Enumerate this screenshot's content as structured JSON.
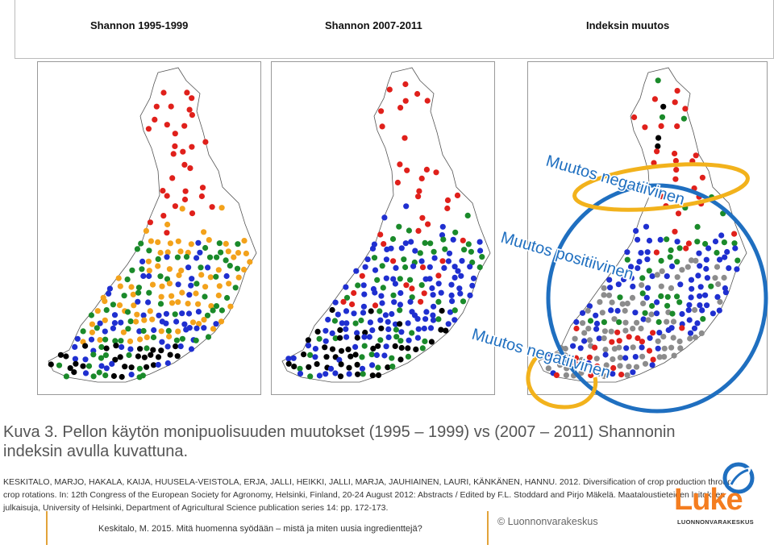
{
  "headers": [
    "Shannon 1995-1999",
    "Shannon 2007-2011",
    "Indeksin muutos"
  ],
  "overlay_labels": {
    "top": "Muutos negatiivinen",
    "middle": "Muutos positiivinen",
    "bottom": "Muutos negatiivinen"
  },
  "caption": "Kuva 3. Pellon käytön monipuolisuuden muutokset (1995 – 1999) vs (2007 – 2011) Shannonin indeksin avulla kuvattuna.",
  "reference": "KESKITALO, MARJO, HAKALA, KAIJA, HUUSELA-VEISTOLA, ERJA, JALLI, HEIKKI, JALLI, MARJA, JAUHIAINEN, LAURI, KÄNKÄNEN, HANNU. 2012.  Diversification of crop production through crop rotations. In: 12th Congress of the European Society for Agronomy, Helsinki, Finland, 20-24 August 2012: Abstracts / Edited by F.L. Stoddard and Pirjo Mäkelä. Maataloustieteiden laitoksen julkaisuja, University of Helsinki, Department of Agricultural Science publication series 14: pp. 172-173.",
  "footer": "Keskitalo, M. 2015. Mitä huomenna syödään – mistä ja miten uusia ingredienttejä?",
  "copyright": "© Luonnonvarakeskus",
  "logo": {
    "word": "Luke",
    "subtitle": "LUONNONVARAKESKUS"
  },
  "colors": {
    "red": "#e0201b",
    "orange": "#f3a21b",
    "green": "#1a8a2a",
    "blue": "#1f2fd0",
    "black": "#000000",
    "grey": "#8c8c8c",
    "accent_blue": "#1f6fc0",
    "accent_yellow": "#f2b21c",
    "logo_orange": "#f47d20"
  }
}
